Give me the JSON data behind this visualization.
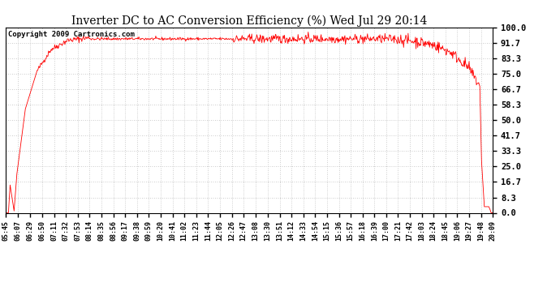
{
  "title": "Inverter DC to AC Conversion Efficiency (%) Wed Jul 29 20:14",
  "copyright": "Copyright 2009 Cartronics.com",
  "line_color": "#ff0000",
  "bg_color": "#ffffff",
  "grid_color": "#bbbbbb",
  "yticks": [
    0.0,
    8.3,
    16.7,
    25.0,
    33.3,
    41.7,
    50.0,
    58.3,
    66.7,
    75.0,
    83.3,
    91.7,
    100.0
  ],
  "ylim": [
    0.0,
    100.0
  ],
  "xtick_labels": [
    "05:45",
    "06:07",
    "06:29",
    "06:50",
    "07:11",
    "07:32",
    "07:53",
    "08:14",
    "08:35",
    "08:56",
    "09:17",
    "09:38",
    "09:59",
    "10:20",
    "10:41",
    "11:02",
    "11:23",
    "11:44",
    "12:05",
    "12:26",
    "12:47",
    "13:08",
    "13:30",
    "13:51",
    "14:12",
    "14:33",
    "14:54",
    "15:15",
    "15:36",
    "15:57",
    "16:18",
    "16:39",
    "17:00",
    "17:21",
    "17:42",
    "18:03",
    "18:24",
    "18:45",
    "19:06",
    "19:27",
    "19:48",
    "20:09"
  ]
}
